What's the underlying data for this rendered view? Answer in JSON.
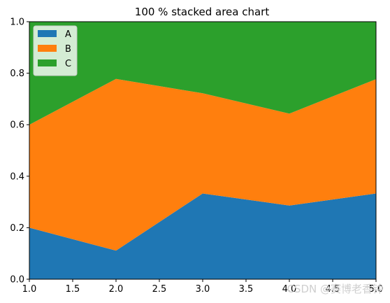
{
  "chart_data": {
    "type": "area",
    "stacked": "percent",
    "title": "100 % stacked area chart",
    "x": [
      1,
      2,
      3,
      4,
      5
    ],
    "xlim": [
      1,
      5
    ],
    "ylim": [
      0,
      1
    ],
    "xticks": [
      "1.0",
      "1.5",
      "2.0",
      "2.5",
      "3.0",
      "3.5",
      "4.0",
      "4.5",
      "5.0"
    ],
    "yticks": [
      "0.0",
      "0.2",
      "0.4",
      "0.6",
      "0.8",
      "1.0"
    ],
    "legend_position": "upper-left",
    "grid": false,
    "series": [
      {
        "name": "A",
        "color": "#1f77b4",
        "values": [
          0.2,
          0.111,
          0.333,
          0.286,
          0.333
        ]
      },
      {
        "name": "B",
        "color": "#ff7f0e",
        "values": [
          0.4,
          0.667,
          0.389,
          0.357,
          0.444
        ]
      },
      {
        "name": "C",
        "color": "#2ca02c",
        "values": [
          0.4,
          0.222,
          0.278,
          0.357,
          0.222
        ]
      }
    ]
  },
  "watermark": "CSDN @赛博老香钟"
}
